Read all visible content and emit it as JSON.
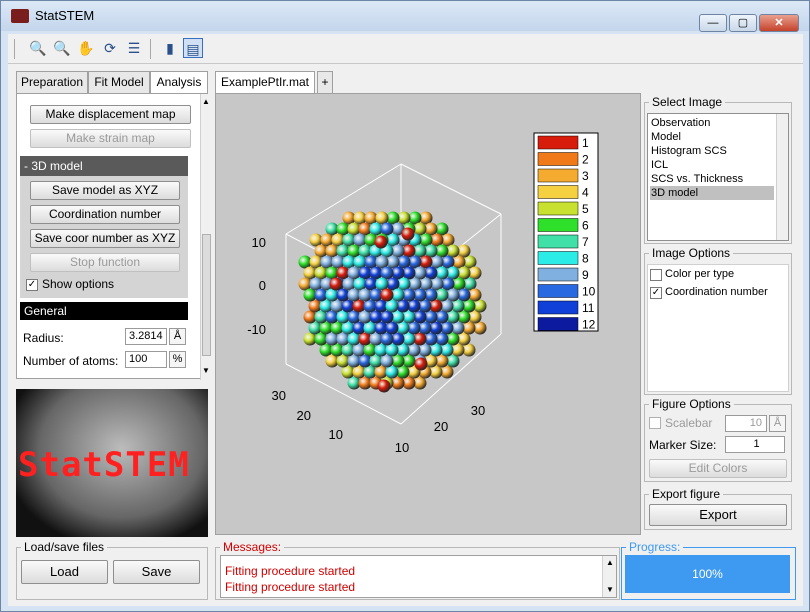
{
  "window": {
    "title": "StatSTEM",
    "minimize": "—",
    "maximize": "▢",
    "close": "✕"
  },
  "toolbar": {
    "zoom_in": "🔍",
    "zoom_out": "🔍",
    "pan": "✋",
    "rotate": "⟳",
    "datatip": "☰",
    "colorbar": "▮",
    "legend": "▤"
  },
  "left_tabs": [
    "Preparation",
    "Fit Model",
    "Analysis"
  ],
  "analysis": {
    "make_displacement_map": "Make displacement map",
    "make_strain_map": "Make strain map",
    "group_title": "- 3D model",
    "save_model_xyz": "Save model as XYZ",
    "coordination_number": "Coordination number",
    "save_coor_xyz": "Save coor number as XYZ",
    "stop_function": "Stop function",
    "show_options": "Show options",
    "general": "General",
    "radius_label": "Radius:",
    "radius_value": "3.2814",
    "radius_unit": "Å",
    "natoms_label": "Number of atoms:",
    "natoms_value": "100",
    "natoms_unit": "%"
  },
  "logo_text": "StatSTEM",
  "loadsave": {
    "title": "Load/save files",
    "load": "Load",
    "save": "Save"
  },
  "center_tabs": [
    "ExamplePtIr.mat",
    "+"
  ],
  "chart_data": {
    "type": "scatter",
    "title": "",
    "z_ticks": [
      "10",
      "0",
      "-10"
    ],
    "y_ticks": [
      "30",
      "20",
      "10"
    ],
    "x_ticks": [
      "10",
      "20",
      "30"
    ],
    "colorbar_labels": [
      "1",
      "2",
      "3",
      "4",
      "5",
      "6",
      "7",
      "8",
      "9",
      "10",
      "11",
      "12"
    ],
    "colorbar_colors": [
      "#d81c0c",
      "#f07a1a",
      "#f5aa30",
      "#f5d040",
      "#c8e030",
      "#2ee02a",
      "#40e0a8",
      "#2cece8",
      "#80b0e0",
      "#2868e0",
      "#1040d8",
      "#0c1aa0"
    ]
  },
  "select_image": {
    "title": "Select Image",
    "items": [
      "Observation",
      "Model",
      "Histogram SCS",
      "ICL",
      "SCS vs. Thickness",
      "3D model"
    ],
    "selected": 5
  },
  "image_options": {
    "title": "Image Options",
    "items": [
      {
        "label": "Color per type",
        "checked": false
      },
      {
        "label": "Coordination number",
        "checked": true
      }
    ]
  },
  "figure_options": {
    "title": "Figure Options",
    "scalebar": "Scalebar",
    "scalebar_value": "10",
    "scalebar_unit": "Å",
    "marker_size_label": "Marker Size:",
    "marker_size": "1",
    "edit_colors": "Edit Colors"
  },
  "export": {
    "title": "Export figure",
    "button": "Export"
  },
  "messages": {
    "title": "Messages:",
    "lines": [
      "Fitting procedure started",
      "Fitting procedure started"
    ]
  },
  "progress": {
    "title": "Progress:",
    "value": "100%"
  }
}
